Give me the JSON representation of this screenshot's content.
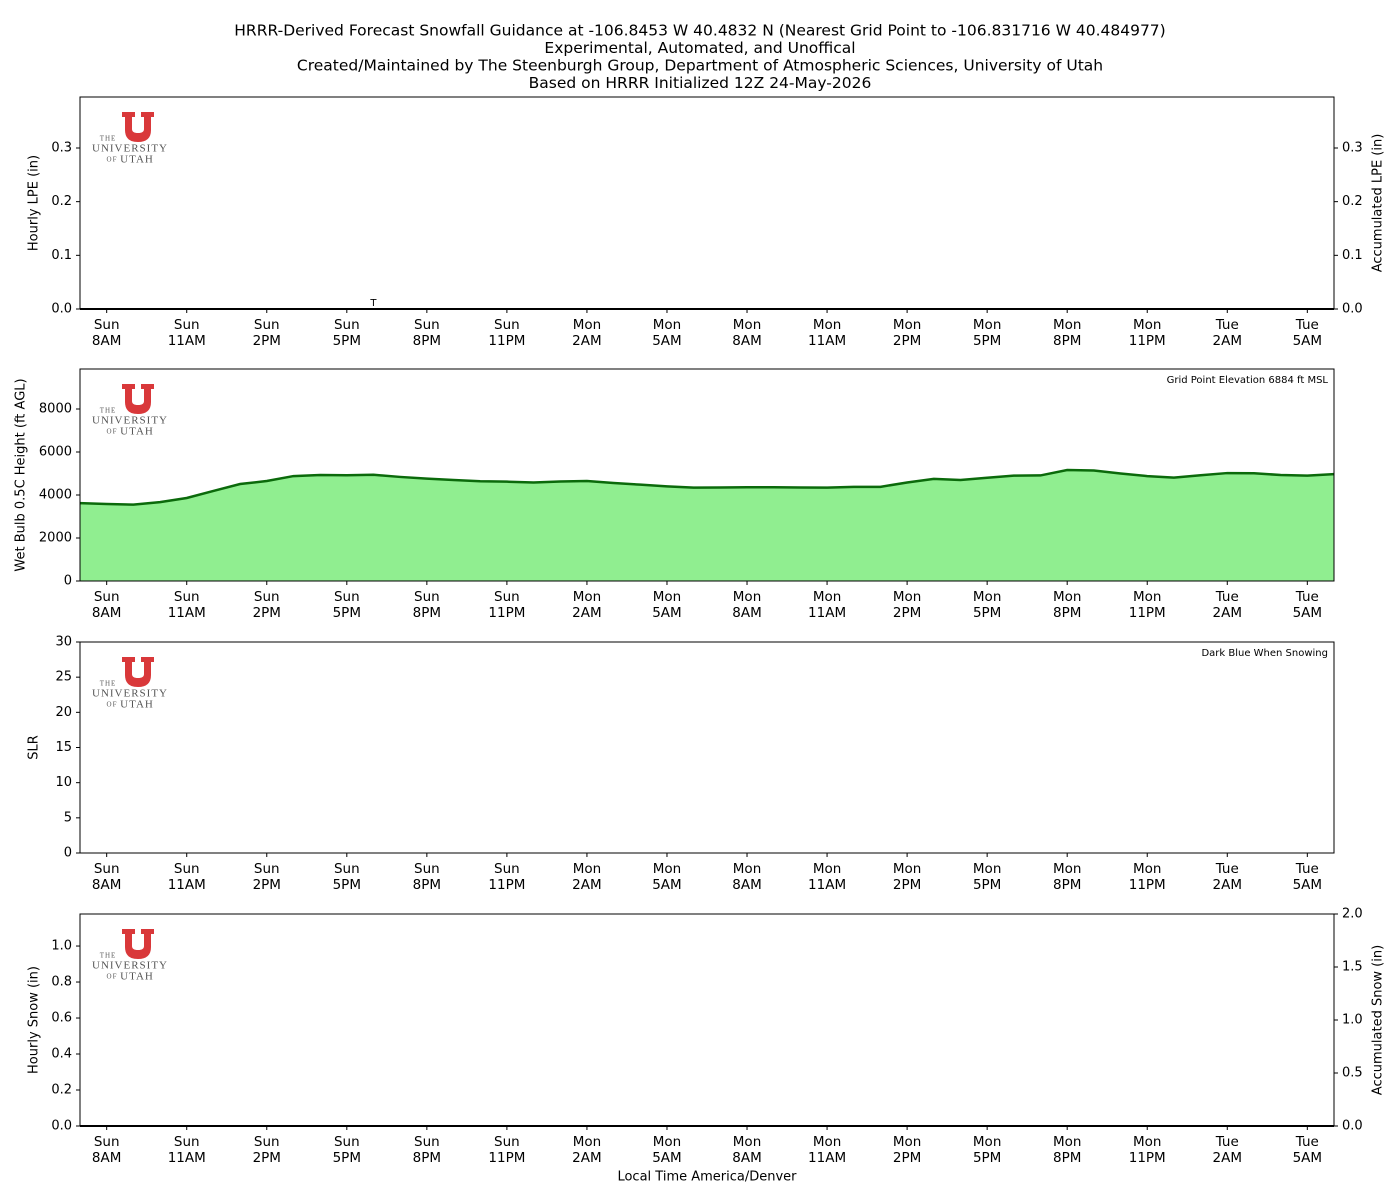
{
  "title": [
    "HRRR-Derived Forecast Snowfall Guidance at -106.8453 W 40.4832 N (Nearest Grid Point to -106.831716 W 40.484977)",
    "Experimental, Automated, and Unoffical",
    "Created/Maintained by The Steenburgh Group, Department of Atmospheric Sciences, University of Utah",
    "Based on HRRR Initialized 12Z 24-May-2026"
  ],
  "logo": [
    "THE",
    "UNIVERSITY",
    "OF",
    "UTAH"
  ],
  "chart_data": [
    {
      "type": "bar",
      "ylabel": "Hourly LPE (in)",
      "y2label": "Accumulated LPE (in)",
      "categories": [
        null,
        "Sun\n8AM",
        null,
        null,
        "Sun\n11AM",
        null,
        null,
        "Sun\n2PM",
        null,
        null,
        "Sun\n5PM",
        null,
        null,
        "Sun\n8PM",
        null,
        null,
        "Sun\n11PM",
        null,
        null,
        "Mon\n2AM",
        null,
        null,
        "Mon\n5AM",
        null,
        null,
        "Mon\n8AM",
        null,
        null,
        "Mon\n11AM",
        null,
        null,
        "Mon\n2PM",
        null,
        null,
        "Mon\n5PM",
        null,
        null,
        "Mon\n8PM",
        null,
        null,
        "Mon\n11PM",
        null,
        null,
        "Tue\n2AM",
        null,
        null,
        "Tue\n5AM",
        null
      ],
      "series": [
        {
          "color": "#2e8b57",
          "values": [
            0,
            0,
            0,
            0,
            0,
            0,
            0,
            0,
            0,
            0,
            0,
            0,
            0,
            0,
            0,
            0,
            0,
            0,
            0,
            0,
            0,
            0,
            0,
            0,
            0,
            0,
            0,
            0,
            0,
            0,
            0,
            0,
            0,
            0,
            0,
            0,
            0,
            0,
            0,
            0,
            0,
            0,
            0,
            0,
            0,
            0,
            0,
            0
          ],
          "value_labels": [
            null,
            null,
            null,
            null,
            null,
            null,
            null,
            null,
            null,
            null,
            null,
            "T",
            null,
            null,
            null,
            null,
            null,
            null,
            null,
            null,
            null,
            null,
            null,
            null,
            null,
            null,
            null,
            null,
            null,
            null,
            null,
            null,
            null,
            null,
            null,
            null,
            null,
            null,
            null,
            null,
            null,
            null,
            null,
            null,
            null,
            null,
            null,
            null
          ]
        },
        {
          "color": "#000000",
          "axis": "y2",
          "values": [
            0,
            0,
            0,
            0,
            0,
            0,
            0,
            0,
            0,
            0,
            0,
            0,
            0,
            0,
            0,
            0,
            0,
            0,
            0,
            0,
            0,
            0,
            0,
            0,
            0,
            0,
            0,
            0,
            0,
            0,
            0,
            0,
            0,
            0,
            0,
            0,
            0,
            0,
            0,
            0,
            0,
            0,
            0,
            0,
            0,
            0,
            0,
            0
          ]
        }
      ],
      "ylim": [
        0,
        0.395
      ],
      "yticks": [
        {
          "value": 0,
          "label": "0.0"
        },
        0.1,
        0.2,
        0.3
      ],
      "y2lim": [
        0,
        0.395
      ],
      "y2ticks": [
        {
          "value": 0,
          "label": "0.0"
        },
        0.1,
        0.2,
        0.3
      ]
    },
    {
      "type": "area",
      "ylabel": "Wet Bulb 0.5C Height (ft AGL)",
      "annotation": "Grid Point Elevation 6884 ft MSL",
      "categories": [
        null,
        "Sun\n8AM",
        null,
        null,
        "Sun\n11AM",
        null,
        null,
        "Sun\n2PM",
        null,
        null,
        "Sun\n5PM",
        null,
        null,
        "Sun\n8PM",
        null,
        null,
        "Sun\n11PM",
        null,
        null,
        "Mon\n2AM",
        null,
        null,
        "Mon\n5AM",
        null,
        null,
        "Mon\n8AM",
        null,
        null,
        "Mon\n11AM",
        null,
        null,
        "Mon\n2PM",
        null,
        null,
        "Mon\n5PM",
        null,
        null,
        "Mon\n8PM",
        null,
        null,
        "Mon\n11PM",
        null,
        null,
        "Tue\n2AM",
        null,
        null,
        "Tue\n5AM",
        null
      ],
      "series": [
        {
          "color": "#0b6a0b",
          "fill": "#90ee90",
          "values": [
            3620,
            3580,
            3550,
            3670,
            3860,
            4190,
            4510,
            4650,
            4880,
            4930,
            4920,
            4940,
            4840,
            4760,
            4700,
            4640,
            4620,
            4580,
            4630,
            4650,
            4560,
            4480,
            4400,
            4340,
            4350,
            4360,
            4360,
            4350,
            4340,
            4380,
            4380,
            4580,
            4750,
            4700,
            4800,
            4900,
            4910,
            5160,
            5140,
            5000,
            4880,
            4810,
            4920,
            5020,
            5010,
            4930,
            4900,
            4970
          ]
        }
      ],
      "ylim": [
        0,
        9860
      ],
      "yticks": [
        0,
        2000,
        4000,
        6000,
        8000
      ]
    },
    {
      "type": "line",
      "ylabel": "SLR",
      "annotation": "Dark Blue When Snowing",
      "categories": [
        null,
        "Sun\n8AM",
        null,
        null,
        "Sun\n11AM",
        null,
        null,
        "Sun\n2PM",
        null,
        null,
        "Sun\n5PM",
        null,
        null,
        "Sun\n8PM",
        null,
        null,
        "Sun\n11PM",
        null,
        null,
        "Mon\n2AM",
        null,
        null,
        "Mon\n5AM",
        null,
        null,
        "Mon\n8AM",
        null,
        null,
        "Mon\n11AM",
        null,
        null,
        "Mon\n2PM",
        null,
        null,
        "Mon\n5PM",
        null,
        null,
        "Mon\n8PM",
        null,
        null,
        "Mon\n11PM",
        null,
        null,
        "Tue\n2AM",
        null,
        null,
        "Tue\n5AM",
        null
      ],
      "ylim": [
        0,
        30
      ],
      "yticks": [
        0,
        5,
        10,
        15,
        20,
        25,
        30
      ]
    },
    {
      "type": "bar",
      "ylabel": "Hourly Snow (in)",
      "y2label": "Accumulated Snow (in)",
      "xlabel": "Local Time America/Denver",
      "categories": [
        null,
        "Sun\n8AM",
        null,
        null,
        "Sun\n11AM",
        null,
        null,
        "Sun\n2PM",
        null,
        null,
        "Sun\n5PM",
        null,
        null,
        "Sun\n8PM",
        null,
        null,
        "Sun\n11PM",
        null,
        null,
        "Mon\n2AM",
        null,
        null,
        "Mon\n5AM",
        null,
        null,
        "Mon\n8AM",
        null,
        null,
        "Mon\n11AM",
        null,
        null,
        "Mon\n2PM",
        null,
        null,
        "Mon\n5PM",
        null,
        null,
        "Mon\n8PM",
        null,
        null,
        "Mon\n11PM",
        null,
        null,
        "Tue\n2AM",
        null,
        null,
        "Tue\n5AM",
        null
      ],
      "series": [
        {
          "color": "#1f3f9f",
          "values": [
            0,
            0,
            0,
            0,
            0,
            0,
            0,
            0,
            0,
            0,
            0,
            0,
            0,
            0,
            0,
            0,
            0,
            0,
            0,
            0,
            0,
            0,
            0,
            0,
            0,
            0,
            0,
            0,
            0,
            0,
            0,
            0,
            0,
            0,
            0,
            0,
            0,
            0,
            0,
            0,
            0,
            0,
            0,
            0,
            0,
            0,
            0,
            0
          ]
        },
        {
          "color": "#000000",
          "axis": "y2",
          "values": [
            0,
            0,
            0,
            0,
            0,
            0,
            0,
            0,
            0,
            0,
            0,
            0,
            0,
            0,
            0,
            0,
            0,
            0,
            0,
            0,
            0,
            0,
            0,
            0,
            0,
            0,
            0,
            0,
            0,
            0,
            0,
            0,
            0,
            0,
            0,
            0,
            0,
            0,
            0,
            0,
            0,
            0,
            0,
            0,
            0,
            0,
            0,
            0
          ]
        }
      ],
      "ylim": [
        0,
        1.178
      ],
      "yticks": [
        {
          "value": 0,
          "label": "0.0"
        },
        0.2,
        0.4,
        0.6,
        0.8,
        {
          "value": 1,
          "label": "1.0"
        }
      ],
      "y2lim": [
        0,
        2
      ],
      "y2ticks": [
        {
          "value": 0,
          "label": "0.0"
        },
        0.5,
        {
          "value": 1,
          "label": "1.0"
        },
        1.5,
        {
          "value": 2,
          "label": "2.0"
        }
      ]
    }
  ]
}
